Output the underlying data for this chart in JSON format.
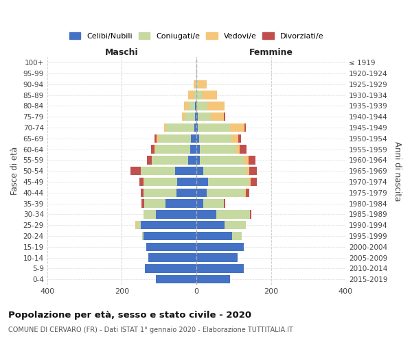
{
  "age_groups": [
    "100+",
    "95-99",
    "90-94",
    "85-89",
    "80-84",
    "75-79",
    "70-74",
    "65-69",
    "60-64",
    "55-59",
    "50-54",
    "45-49",
    "40-44",
    "35-39",
    "30-34",
    "25-29",
    "20-24",
    "15-19",
    "10-14",
    "5-9",
    "0-4"
  ],
  "birth_years": [
    "≤ 1919",
    "1920-1924",
    "1925-1929",
    "1930-1934",
    "1935-1939",
    "1940-1944",
    "1945-1949",
    "1950-1954",
    "1955-1959",
    "1960-1964",
    "1965-1969",
    "1970-1974",
    "1975-1979",
    "1980-1984",
    "1985-1989",
    "1990-1994",
    "1995-1999",
    "2000-2004",
    "2005-2009",
    "2010-2014",
    "2015-2019"
  ],
  "maschi": {
    "celibi": [
      0,
      0,
      0,
      0,
      3,
      4,
      5,
      14,
      16,
      22,
      58,
      52,
      54,
      82,
      108,
      150,
      142,
      134,
      128,
      138,
      108
    ],
    "coniugati": [
      0,
      0,
      2,
      6,
      18,
      28,
      76,
      88,
      94,
      98,
      92,
      90,
      88,
      58,
      34,
      10,
      4,
      0,
      0,
      0,
      0
    ],
    "vedovi": [
      0,
      0,
      5,
      16,
      12,
      6,
      6,
      5,
      2,
      0,
      0,
      0,
      0,
      0,
      0,
      4,
      0,
      0,
      0,
      0,
      0
    ],
    "divorziati": [
      0,
      0,
      0,
      0,
      0,
      0,
      0,
      5,
      10,
      12,
      26,
      10,
      8,
      8,
      0,
      0,
      0,
      0,
      0,
      0,
      0
    ]
  },
  "femmine": {
    "nubili": [
      0,
      0,
      0,
      0,
      0,
      4,
      4,
      8,
      10,
      10,
      18,
      32,
      28,
      18,
      54,
      76,
      96,
      126,
      110,
      126,
      90
    ],
    "coniugate": [
      0,
      0,
      4,
      14,
      30,
      34,
      86,
      86,
      96,
      116,
      116,
      110,
      100,
      56,
      90,
      56,
      26,
      0,
      0,
      0,
      0
    ],
    "vedove": [
      0,
      2,
      24,
      42,
      46,
      36,
      38,
      18,
      10,
      14,
      8,
      4,
      4,
      0,
      0,
      0,
      0,
      0,
      0,
      0,
      0
    ],
    "divorziate": [
      0,
      0,
      0,
      0,
      0,
      4,
      4,
      8,
      18,
      18,
      20,
      16,
      10,
      4,
      4,
      0,
      0,
      0,
      0,
      0,
      0
    ]
  },
  "colors": {
    "celibi_nubili": "#4472C4",
    "coniugati": "#C5D9A0",
    "vedovi": "#F5C57A",
    "divorziati": "#C0504D"
  },
  "title": "Popolazione per età, sesso e stato civile - 2020",
  "subtitle": "COMUNE DI CERVARO (FR) - Dati ISTAT 1° gennaio 2020 - Elaborazione TUTTITALIA.IT",
  "label_maschi": "Maschi",
  "label_femmine": "Femmine",
  "ylabel_left": "Fasce di età",
  "ylabel_right": "Anni di nascita",
  "xlim": 400,
  "legend_labels": [
    "Celibi/Nubili",
    "Coniugati/e",
    "Vedovi/e",
    "Divorziati/e"
  ],
  "background_color": "#ffffff",
  "grid_color": "#cccccc"
}
